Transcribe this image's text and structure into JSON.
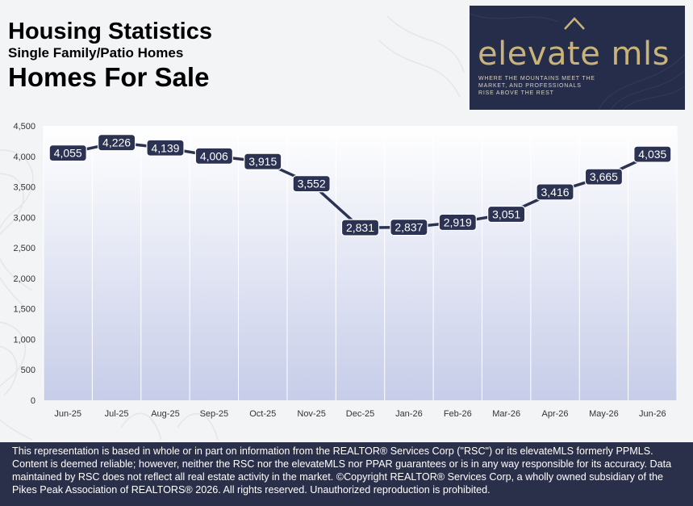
{
  "header": {
    "title": "Housing Statistics",
    "subtitle": "Single Family/Patio Homes",
    "title2": "Homes For Sale"
  },
  "logo": {
    "text": "elevate mls",
    "tagline": "WHERE THE MOUNTAINS MEET THE MARKET, AND PROFESSIONALS RISE ABOVE THE REST",
    "bg_color": "#262d4a",
    "text_color": "#c9b37a",
    "icon": "mountain-peak-icon"
  },
  "chart_data": {
    "type": "line",
    "title": "",
    "xlabel": "",
    "ylabel": "",
    "categories": [
      "Jun-25",
      "Jul-25",
      "Aug-25",
      "Sep-25",
      "Oct-25",
      "Nov-25",
      "Dec-25",
      "Jan-26",
      "Feb-26",
      "Mar-26",
      "Apr-26",
      "May-26",
      "Jun-26"
    ],
    "values": [
      4055,
      4226,
      4139,
      4006,
      3915,
      3552,
      2831,
      2837,
      2919,
      3051,
      3416,
      3665,
      4035
    ],
    "value_labels": [
      "4,055",
      "4,226",
      "4,139",
      "4,006",
      "3,915",
      "3,552",
      "2,831",
      "2,837",
      "2,919",
      "3,051",
      "3,416",
      "3,665",
      "4,035"
    ],
    "ylim": [
      0,
      4500
    ],
    "yticks": [
      "0",
      "500",
      "1,000",
      "1,500",
      "2,000",
      "2,500",
      "3,000",
      "3,500",
      "4,000",
      "4,500"
    ],
    "grid": "vertical",
    "legend": "none",
    "line_color": "#2b3252",
    "label_bg_color": "#2b3252"
  },
  "footer": {
    "text": "This representation is based in whole or in part on information from the REALTOR® Services Corp (\"RSC\") or its elevateMLS formerly PPMLS. Content is deemed reliable; however, neither the RSC nor the elevateMLS nor PPAR guarantees or is in any way responsible for its accuracy. Data maintained by RSC does not reflect all real estate activity in the market.  ©Copyright REALTOR® Services Corp, a wholly owned subsidiary of the Pikes Peak Association of REALTORS® 2026. All rights reserved. Unauthorized reproduction is prohibited."
  }
}
